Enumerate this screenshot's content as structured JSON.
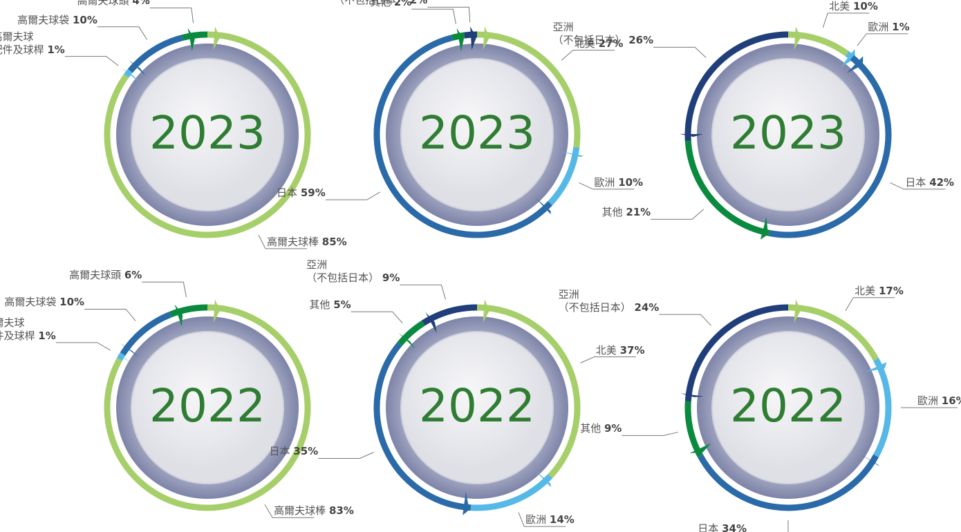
{
  "chart_data": [
    {
      "type": "pie",
      "title": "2023",
      "categories": [
        "高爾夫球棒",
        "高爾夫球\n配件及球桿",
        "高爾夫球袋",
        "高爾夫球頭"
      ],
      "values": [
        85,
        1,
        10,
        4
      ],
      "value_labels": [
        "85%",
        "1%",
        "10%",
        "4%"
      ],
      "colors": [
        "#a6cf6a",
        "#56b8e6",
        "#2a6aa8",
        "#0a8a3e"
      ]
    },
    {
      "type": "pie",
      "title": "2023",
      "categories": [
        "北美",
        "歐洲",
        "日本",
        "其他",
        "亞洲\n（不包括日本）"
      ],
      "values": [
        27,
        10,
        59,
        2,
        2
      ],
      "value_labels": [
        "27%",
        "10%",
        "59%",
        "2%",
        "2%"
      ],
      "colors": [
        "#a6cf6a",
        "#56b8e6",
        "#2a6aa8",
        "#0a8a3e",
        "#203f7a"
      ]
    },
    {
      "type": "pie",
      "title": "2023",
      "categories": [
        "北美",
        "歐洲",
        "日本",
        "其他",
        "亞洲\n（不包括日本）"
      ],
      "values": [
        10,
        1,
        42,
        21,
        26
      ],
      "value_labels": [
        "10%",
        "1%",
        "42%",
        "21%",
        "26%"
      ],
      "colors": [
        "#a6cf6a",
        "#56b8e6",
        "#2a6aa8",
        "#0a8a3e",
        "#203f7a"
      ]
    },
    {
      "type": "pie",
      "title": "2022",
      "categories": [
        "高爾夫球棒",
        "高爾夫球\n配件及球桿",
        "高爾夫球袋",
        "高爾夫球頭"
      ],
      "values": [
        83,
        1,
        10,
        6
      ],
      "value_labels": [
        "83%",
        "1%",
        "10%",
        "6%"
      ],
      "colors": [
        "#a6cf6a",
        "#56b8e6",
        "#2a6aa8",
        "#0a8a3e"
      ]
    },
    {
      "type": "pie",
      "title": "2022",
      "categories": [
        "北美",
        "歐洲",
        "日本",
        "其他",
        "亞洲\n（不包括日本）"
      ],
      "values": [
        37,
        14,
        35,
        5,
        9
      ],
      "value_labels": [
        "37%",
        "14%",
        "35%",
        "5%",
        "9%"
      ],
      "colors": [
        "#a6cf6a",
        "#56b8e6",
        "#2a6aa8",
        "#0a8a3e",
        "#203f7a"
      ]
    },
    {
      "type": "pie",
      "title": "2022",
      "categories": [
        "北美",
        "歐洲",
        "日本",
        "其他",
        "亞洲\n（不包括日本）"
      ],
      "values": [
        17,
        16,
        34,
        9,
        24
      ],
      "value_labels": [
        "17%",
        "16%",
        "34%",
        "9%",
        "24%"
      ],
      "colors": [
        "#a6cf6a",
        "#56b8e6",
        "#2a6aa8",
        "#0a8a3e",
        "#203f7a"
      ]
    }
  ]
}
